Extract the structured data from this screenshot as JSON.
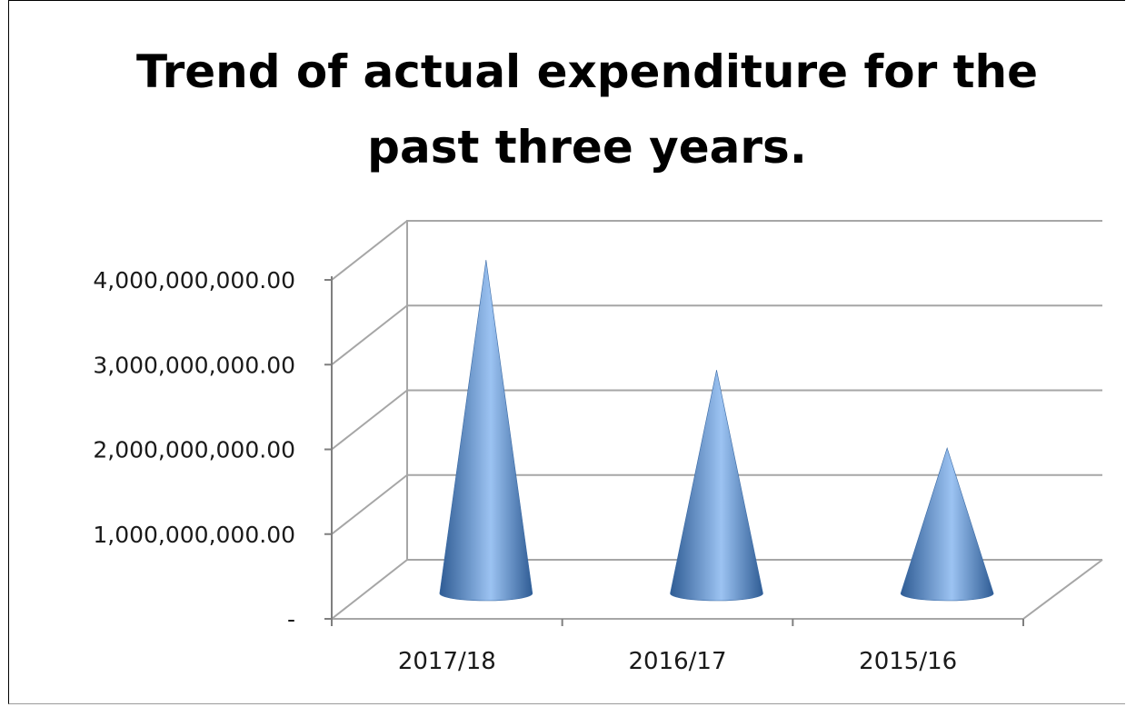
{
  "chart_data": {
    "type": "bar",
    "bar_shape": "cone",
    "view": "3d",
    "title": "Trend of actual expenditure  for the past three years.",
    "title_lines": [
      "Trend of actual expenditure  for the",
      "past three years."
    ],
    "xlabel": "",
    "ylabel": "",
    "categories": [
      "2017/18",
      "2016/17",
      "2015/16"
    ],
    "values": [
      4000000000,
      2700000000,
      1780000000
    ],
    "ylim": [
      0,
      4000000000
    ],
    "y_tick_values": [
      0,
      1000000000,
      2000000000,
      3000000000,
      4000000000
    ],
    "y_tick_labels": [
      "-",
      "1,000,000,000.00",
      "2,000,000,000.00",
      "3,000,000,000.00",
      "4,000,000,000.00"
    ],
    "grid": true,
    "legend": "none",
    "colors": {
      "cone_dark": "#2f5c94",
      "cone_mid": "#4f81bd",
      "cone_light": "#9cc3f2",
      "gridline": "#a6a6a6",
      "axis": "#7f7f7f"
    }
  }
}
